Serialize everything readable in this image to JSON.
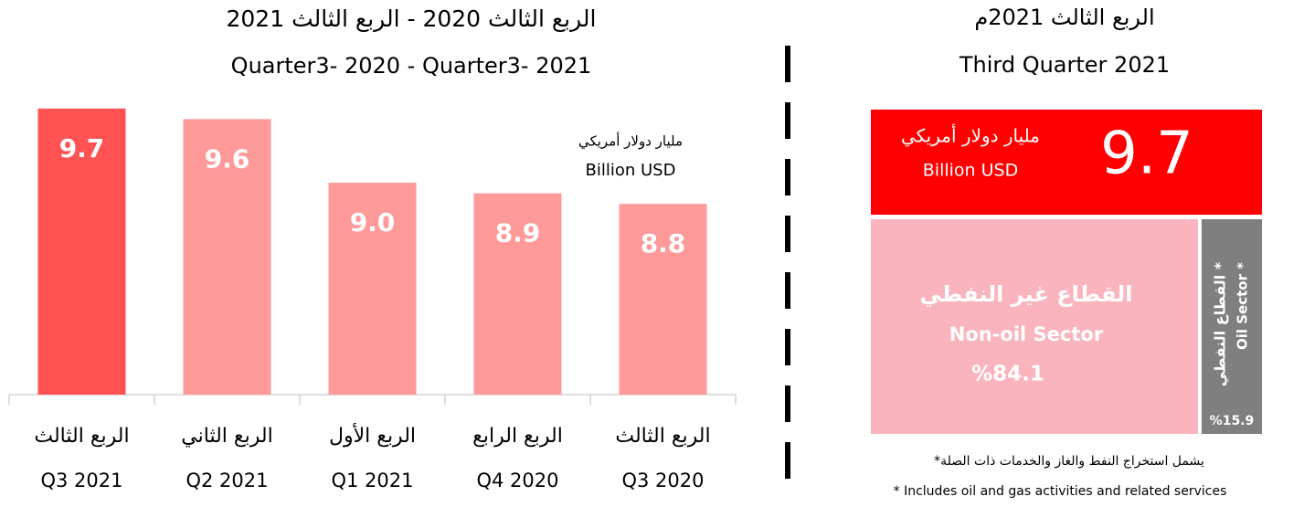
{
  "chart_data": [
    {
      "type": "bar",
      "title": "الربع الثالث 2020 - الربع الثالث 2021",
      "subtitle": "Quarter3- 2020 - Quarter3- 2021",
      "unit_labels": [
        "مليار دولار أمريكي",
        "Billion USD"
      ],
      "categories": [
        [
          "الربع الثالث",
          "Q3 2021"
        ],
        [
          "الربع الثاني",
          "Q2 2021"
        ],
        [
          "الربع الأول",
          "Q1 2021"
        ],
        [
          "الربع الرابع",
          "Q4 2020"
        ],
        [
          "الربع الثالث",
          "Q3 2020"
        ]
      ],
      "values": [
        9.7,
        9.6,
        9.0,
        8.9,
        8.8
      ],
      "value_labels": [
        "9.7",
        "9.6",
        "9.0",
        "8.9",
        "8.8"
      ],
      "colors": [
        "#ff5252",
        "#fe9a9a",
        "#fe9a9a",
        "#fe9a9a",
        "#fe9a9a"
      ],
      "ylim": [
        7,
        10
      ]
    },
    {
      "type": "treemap",
      "title": "الربع الثالث 2021م",
      "subtitle": "Third Quarter 2021",
      "total": 9.7,
      "total_label": "9.7",
      "unit_labels": [
        "مليار دولار أمريكي",
        "Billion USD"
      ],
      "total_color": "#fe0000",
      "categories": [
        [
          "القطاع غير النفطي",
          "Non-oil Sector"
        ],
        [
          "القطاع النفطي *",
          "Oil Sector *"
        ]
      ],
      "values": [
        84.1,
        15.9
      ],
      "value_labels": [
        "%84.1",
        "%15.9"
      ],
      "colors": [
        "#fab4bd",
        "#7f7f7f"
      ],
      "notes": [
        "*يشمل استخراج النفط والغاز والخدمات ذات الصلة",
        "* Includes oil and gas activities and related services"
      ]
    }
  ]
}
